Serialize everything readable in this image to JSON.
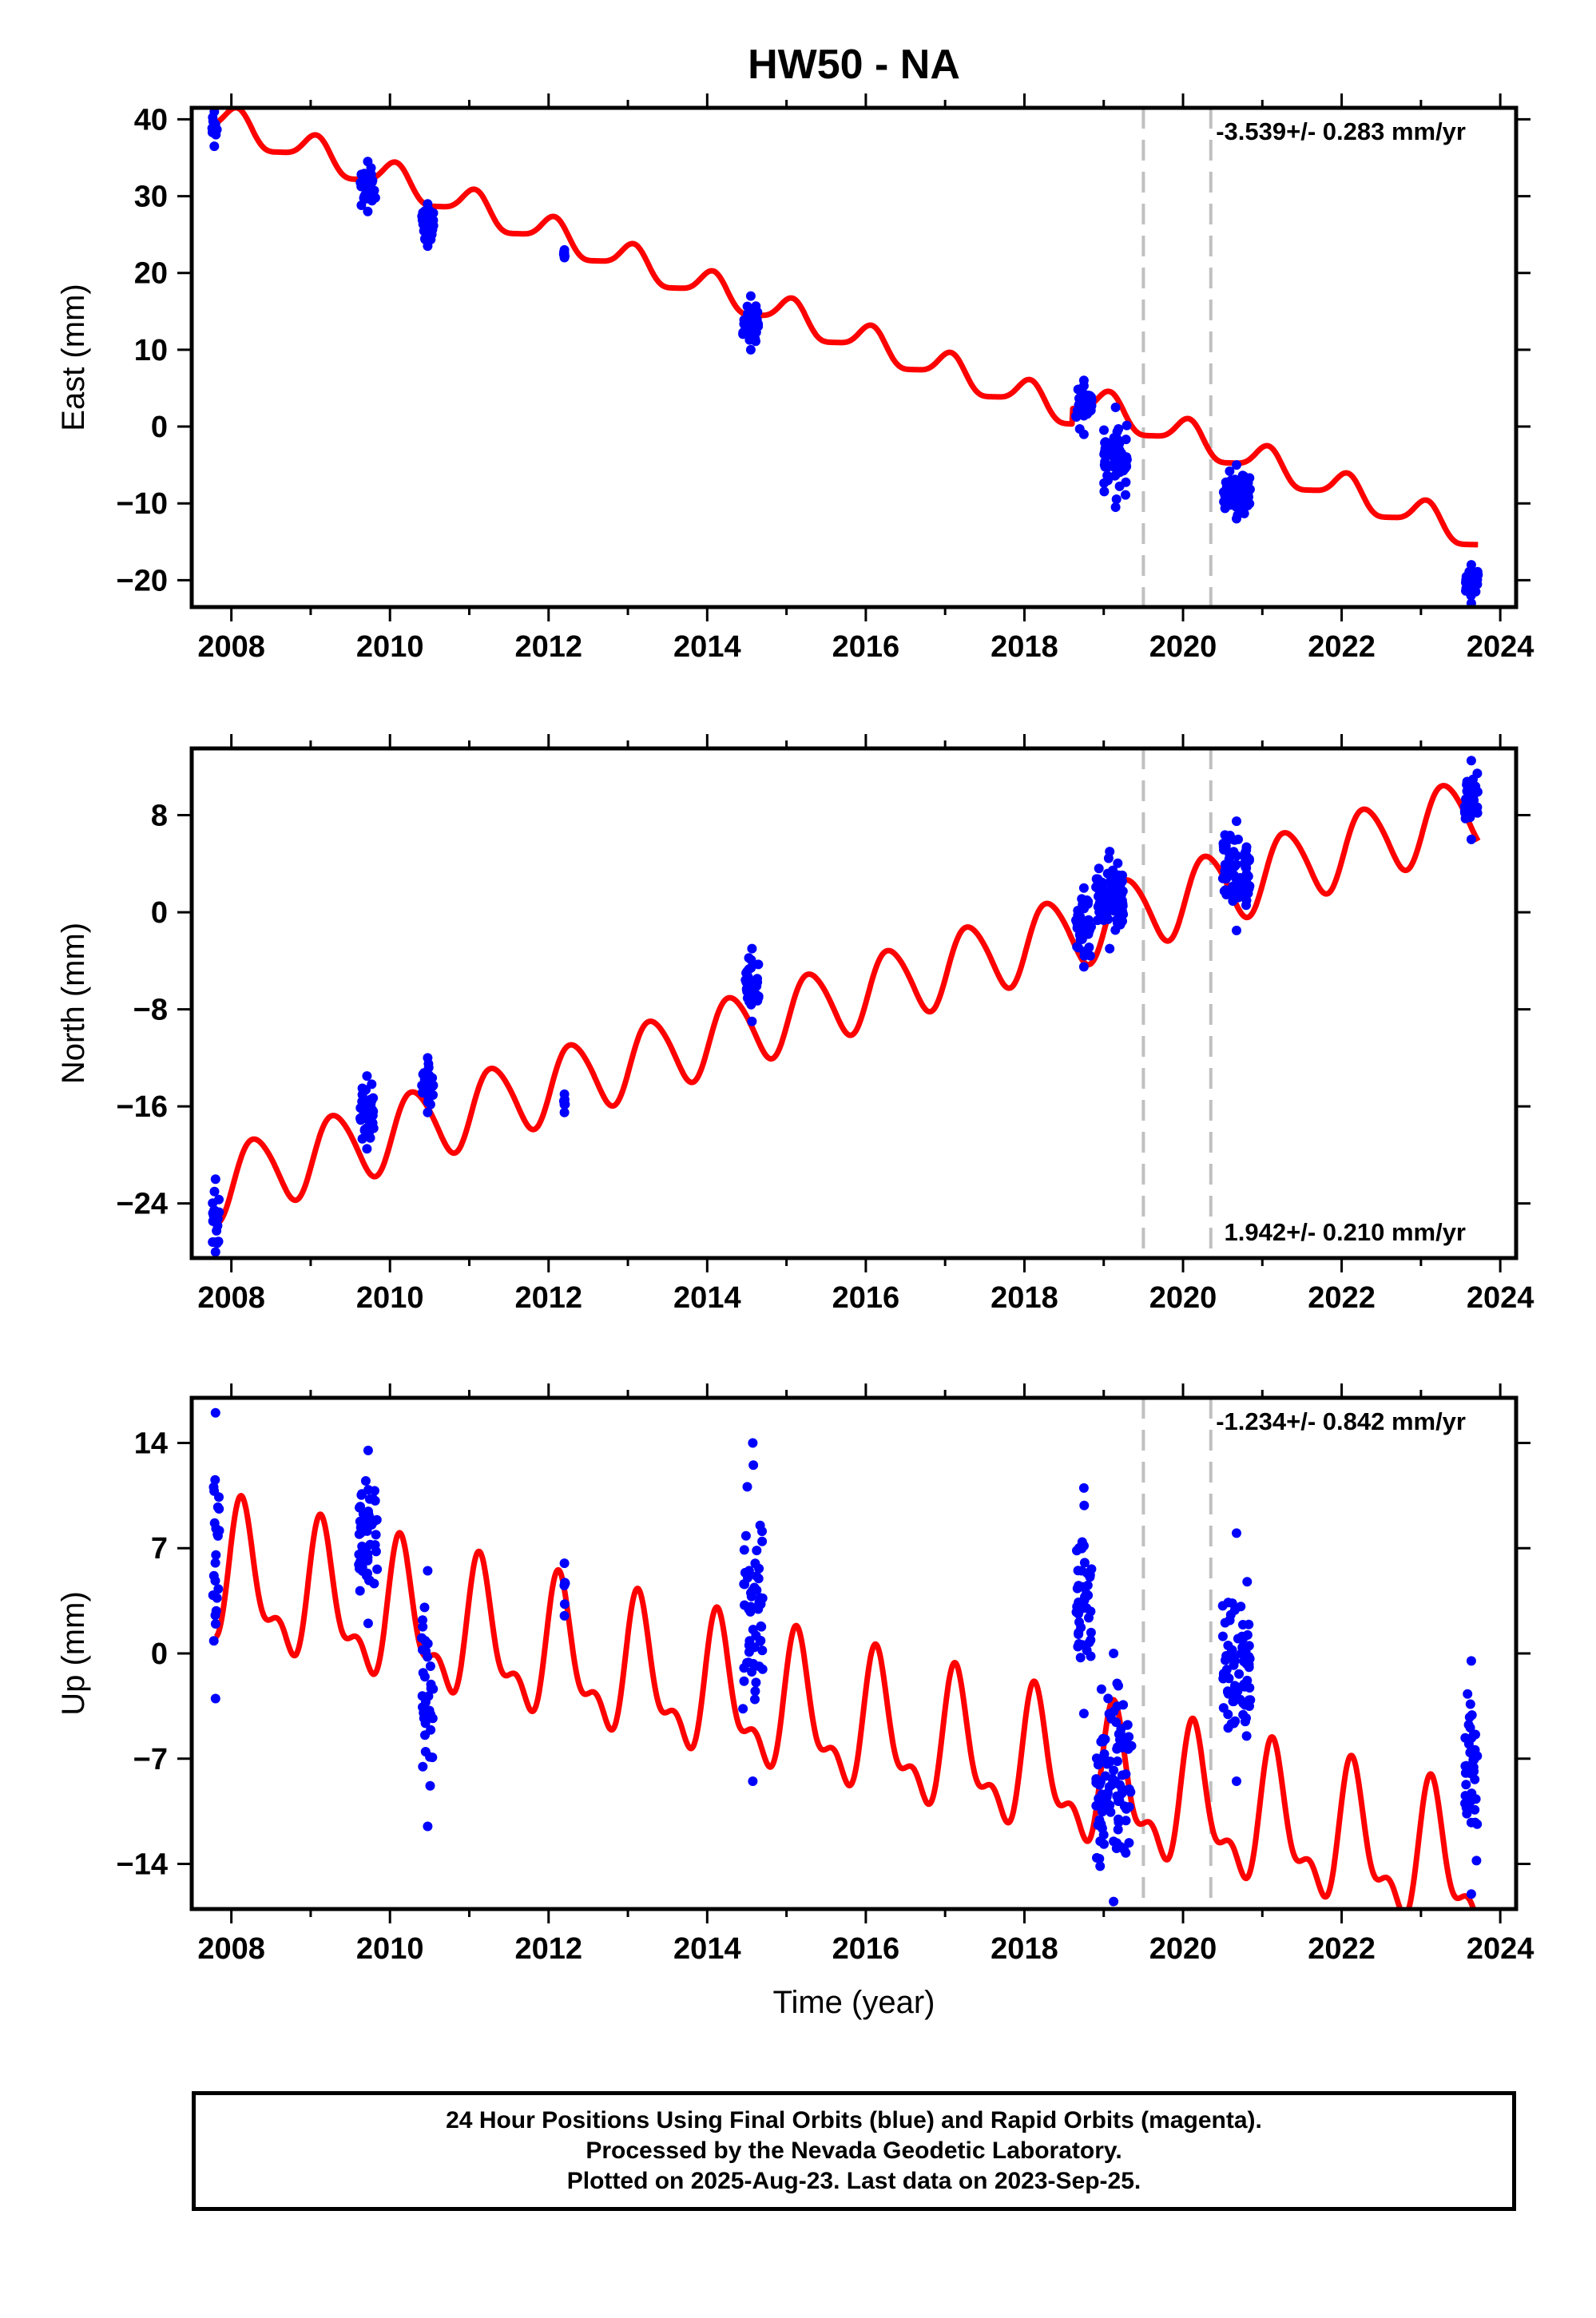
{
  "title": "HW50 - NA",
  "xlabel": "Time (year)",
  "colors": {
    "data": "#0000ff",
    "model": "#ff0000",
    "break": "#c0c0c0"
  },
  "footer": [
    "24 Hour Positions Using Final Orbits (blue) and Rapid Orbits (magenta).",
    "Processed by the Nevada Geodetic Laboratory.",
    "Plotted on 2025-Aug-23. Last data on 2023-Sep-25."
  ],
  "chart_data": [
    {
      "type": "scatter",
      "ylabel": "East (mm)",
      "rate_label": "-3.539+/- 0.283 mm/yr",
      "xlim": [
        2007.5,
        2024.2
      ],
      "ylim": [
        -23.5,
        41.5
      ],
      "x_ticks": [
        2008,
        2010,
        2012,
        2014,
        2016,
        2018,
        2020,
        2022,
        2024
      ],
      "y_ticks": [
        -20,
        -10,
        0,
        10,
        20,
        30,
        40
      ],
      "breaks": [
        2019.5,
        2020.35
      ],
      "model": {
        "name": "model",
        "type": "line",
        "start": 2007.8,
        "end": 2023.72,
        "y0": 40.0,
        "rate": -3.539,
        "annual_amp": 2.0,
        "annual_phase": 1.2,
        "semiannual_amp": 0.5,
        "semiannual_phase": 0.3,
        "offsets": [
          [
            2018.6,
            2.0
          ]
        ]
      },
      "clusters": [
        {
          "x": [
            2007.75,
            2007.82
          ],
          "y": [
            36.5,
            41.0
          ]
        },
        {
          "x": [
            2009.62,
            2009.82
          ],
          "y": [
            28.0,
            34.5
          ]
        },
        {
          "x": [
            2010.4,
            2010.55
          ],
          "y": [
            23.5,
            29.0
          ]
        },
        {
          "x": [
            2012.19,
            2012.21
          ],
          "y": [
            22.0,
            23.0
          ]
        },
        {
          "x": [
            2014.45,
            2014.65
          ],
          "y": [
            10.0,
            17.0
          ]
        },
        {
          "x": [
            2018.65,
            2018.85
          ],
          "y": [
            -1.0,
            6.0
          ]
        },
        {
          "x": [
            2019.0,
            2019.3
          ],
          "y": [
            -10.5,
            2.5
          ]
        },
        {
          "x": [
            2020.5,
            2020.85
          ],
          "y": [
            -12.0,
            -5.0
          ]
        },
        {
          "x": [
            2023.55,
            2023.72
          ],
          "y": [
            -23.0,
            -18.0
          ]
        }
      ]
    },
    {
      "type": "scatter",
      "ylabel": "North (mm)",
      "rate_label": "1.942+/- 0.210 mm/yr",
      "xlim": [
        2007.5,
        2024.2
      ],
      "ylim": [
        -28.5,
        13.5
      ],
      "x_ticks": [
        2008,
        2010,
        2012,
        2014,
        2016,
        2018,
        2020,
        2022,
        2024
      ],
      "y_ticks": [
        -24,
        -16,
        -8,
        0,
        8
      ],
      "breaks": [
        2019.5,
        2020.35
      ],
      "model": {
        "name": "model",
        "type": "line",
        "start": 2007.8,
        "end": 2023.72,
        "y0": -22.5,
        "rate": 1.942,
        "annual_amp": 3.0,
        "annual_phase": -0.3,
        "semiannual_amp": 0.3,
        "semiannual_phase": 0.0,
        "offsets": []
      },
      "clusters": [
        {
          "x": [
            2007.75,
            2007.85
          ],
          "y": [
            -28.0,
            -22.0
          ]
        },
        {
          "x": [
            2009.62,
            2009.8
          ],
          "y": [
            -19.5,
            -13.5
          ]
        },
        {
          "x": [
            2010.4,
            2010.55
          ],
          "y": [
            -16.5,
            -12.0
          ]
        },
        {
          "x": [
            2012.19,
            2012.21
          ],
          "y": [
            -16.5,
            -15.0
          ]
        },
        {
          "x": [
            2014.48,
            2014.65
          ],
          "y": [
            -9.0,
            -3.0
          ]
        },
        {
          "x": [
            2018.65,
            2018.85
          ],
          "y": [
            -4.5,
            2.0
          ]
        },
        {
          "x": [
            2018.9,
            2019.25
          ],
          "y": [
            -3.0,
            5.0
          ]
        },
        {
          "x": [
            2020.5,
            2020.85
          ],
          "y": [
            -1.5,
            7.5
          ]
        },
        {
          "x": [
            2023.55,
            2023.72
          ],
          "y": [
            6.0,
            12.5
          ]
        }
      ]
    },
    {
      "type": "scatter",
      "ylabel": "Up (mm)",
      "rate_label": "-1.234+/- 0.842 mm/yr",
      "xlim": [
        2007.5,
        2024.2
      ],
      "ylim": [
        -17.0,
        17.0
      ],
      "x_ticks": [
        2008,
        2010,
        2012,
        2014,
        2016,
        2018,
        2020,
        2022,
        2024
      ],
      "y_ticks": [
        -14,
        -7,
        0,
        7,
        14
      ],
      "breaks": [
        2019.5,
        2020.35
      ],
      "model": {
        "name": "model",
        "type": "line",
        "start": 2007.8,
        "end": 2023.72,
        "y0": 5.0,
        "rate": -1.234,
        "annual_amp": 4.0,
        "annual_phase": 0.6,
        "semiannual_amp": 2.0,
        "semiannual_phase": 0.2,
        "offsets": []
      },
      "clusters": [
        {
          "x": [
            2007.75,
            2007.85
          ],
          "y": [
            -3.0,
            16.0
          ]
        },
        {
          "x": [
            2009.6,
            2009.85
          ],
          "y": [
            2.0,
            13.5
          ]
        },
        {
          "x": [
            2010.4,
            2010.55
          ],
          "y": [
            -11.5,
            5.5
          ]
        },
        {
          "x": [
            2012.19,
            2012.21
          ],
          "y": [
            2.5,
            6.0
          ]
        },
        {
          "x": [
            2014.45,
            2014.7
          ],
          "y": [
            -8.5,
            14.0
          ]
        },
        {
          "x": [
            2018.65,
            2018.85
          ],
          "y": [
            -4.0,
            11.0
          ]
        },
        {
          "x": [
            2018.9,
            2019.35
          ],
          "y": [
            -16.5,
            0.0
          ]
        },
        {
          "x": [
            2020.5,
            2020.85
          ],
          "y": [
            -8.5,
            8.0
          ]
        },
        {
          "x": [
            2023.55,
            2023.72
          ],
          "y": [
            -16.0,
            -0.5
          ]
        }
      ]
    }
  ]
}
